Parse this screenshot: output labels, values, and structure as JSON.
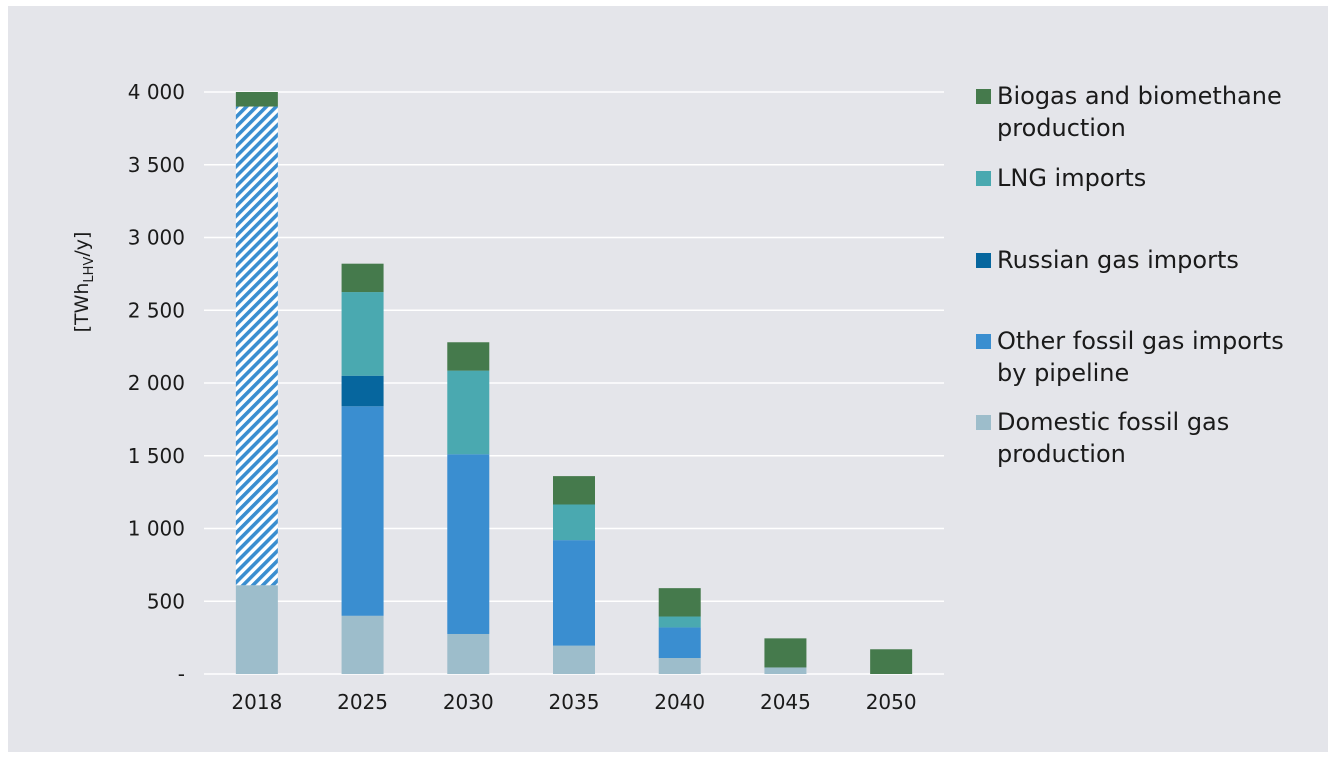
{
  "chart_data": {
    "type": "bar",
    "stacked": true,
    "categories": [
      "2018",
      "2025",
      "2030",
      "2035",
      "2040",
      "2045",
      "2050"
    ],
    "ylabel": "[TWh",
    "ylabel_sub": "LHV",
    "ylabel_suffix": "/y]",
    "ylim": [
      0,
      4000
    ],
    "yticks": [
      0,
      500,
      1000,
      1500,
      2000,
      2500,
      3000,
      3500,
      4000
    ],
    "ytick_labels": [
      "-",
      "500",
      "1 000",
      "1 500",
      "2 000",
      "2 500",
      "3 000",
      "3 500",
      "4 000"
    ],
    "grid": true,
    "legend_position": "right",
    "series": [
      {
        "name": "Domestic fossil gas production",
        "color": "#9dbdcb",
        "values": [
          610,
          400,
          275,
          195,
          110,
          45,
          0
        ]
      },
      {
        "name": "Other fossil gas imports by pipeline",
        "color": "#3a8ed0",
        "values": [
          0,
          1440,
          1235,
          725,
          210,
          0,
          0
        ]
      },
      {
        "name": "Russian gas imports",
        "color": "#06669e",
        "values": [
          0,
          210,
          0,
          0,
          0,
          0,
          0
        ]
      },
      {
        "name": "LNG imports",
        "color": "#4aa9b0",
        "values": [
          0,
          575,
          575,
          245,
          75,
          0,
          0
        ]
      },
      {
        "name": "Biogas and biomethane production",
        "color": "#457a4c",
        "values": [
          100,
          195,
          195,
          195,
          195,
          200,
          170
        ]
      }
    ],
    "hatched_segment": {
      "category": "2018",
      "from": 610,
      "to": 3900,
      "color": "#3a8ed0"
    },
    "legend_order": [
      {
        "name": "Biogas and biomethane production",
        "lines": [
          "Biogas and biomethane",
          "production"
        ],
        "color": "#457a4c"
      },
      {
        "name": "LNG imports",
        "lines": [
          "LNG imports"
        ],
        "color": "#4aa9b0"
      },
      {
        "name": "Russian gas imports",
        "lines": [
          "Russian gas imports"
        ],
        "color": "#06669e"
      },
      {
        "name": "Other fossil gas imports by pipeline",
        "lines": [
          "Other fossil gas imports",
          "by pipeline"
        ],
        "color": "#3a8ed0"
      },
      {
        "name": "Domestic fossil gas production",
        "lines": [
          "Domestic fossil gas",
          "production"
        ],
        "color": "#9dbdcb"
      }
    ]
  }
}
